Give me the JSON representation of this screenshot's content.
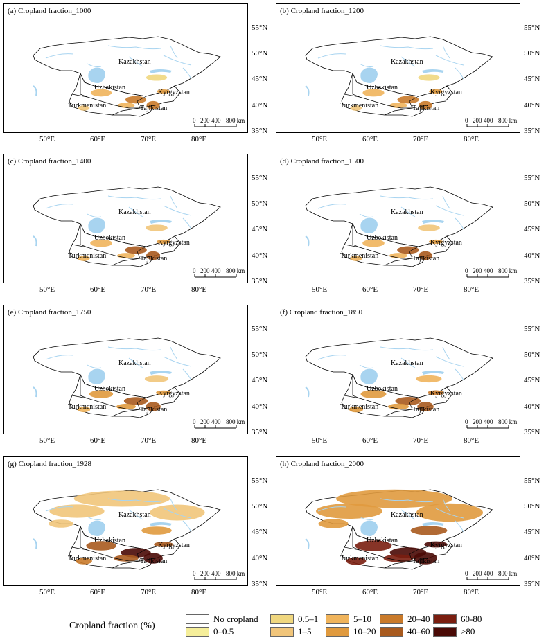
{
  "panels": [
    {
      "title": "(a) Cropland fraction_1000",
      "year": 1000,
      "intensity": 0.15
    },
    {
      "title": "(b) Cropland fraction_1200",
      "year": 1200,
      "intensity": 0.18
    },
    {
      "title": "(c) Cropland fraction_1400",
      "year": 1400,
      "intensity": 0.2
    },
    {
      "title": "(d) Cropland fraction_1500",
      "year": 1500,
      "intensity": 0.2
    },
    {
      "title": "(e) Cropland fraction_1750",
      "year": 1750,
      "intensity": 0.3
    },
    {
      "title": "(f) Cropland fraction_1850",
      "year": 1850,
      "intensity": 0.4
    },
    {
      "title": "(g) Cropland fraction_1928",
      "year": 1928,
      "intensity": 0.65
    },
    {
      "title": "(h) Cropland fraction_2000",
      "year": 2000,
      "intensity": 1.0
    }
  ],
  "lat_labels": [
    "55°N",
    "50°N",
    "45°N",
    "40°N",
    "35°N"
  ],
  "lon_labels": [
    "50°E",
    "60°E",
    "70°E",
    "80°E"
  ],
  "countries": {
    "kazakhstan": "Kazakhstan",
    "uzbekistan": "Uzbekistan",
    "kyrgyzstan": "Kyrgyzstan",
    "turkmenistan": "Turkmenistan",
    "tajikistan": "Tajikistan"
  },
  "scale_bar": {
    "labels": [
      "0",
      "200",
      "400",
      "800 km"
    ]
  },
  "legend": {
    "title": "Cropland fraction (%)",
    "items": [
      {
        "label": "No cropland",
        "color": "#ffffff"
      },
      {
        "label": "0–0.5",
        "color": "#f5ee9a"
      },
      {
        "label": "0.5–1",
        "color": "#f0d77f"
      },
      {
        "label": "1–5",
        "color": "#f1c57a"
      },
      {
        "label": "5–10",
        "color": "#f0b45c"
      },
      {
        "label": "10–20",
        "color": "#e09a3e"
      },
      {
        "label": "20–40",
        "color": "#c97a2a"
      },
      {
        "label": "40–60",
        "color": "#a85a1e"
      },
      {
        "label": "60-80",
        "color": "#7a1e10"
      },
      {
        "label": ">80",
        "color": "#4a0a06"
      }
    ]
  },
  "colors": {
    "water": "#a8d4f0",
    "border": "#000000"
  }
}
